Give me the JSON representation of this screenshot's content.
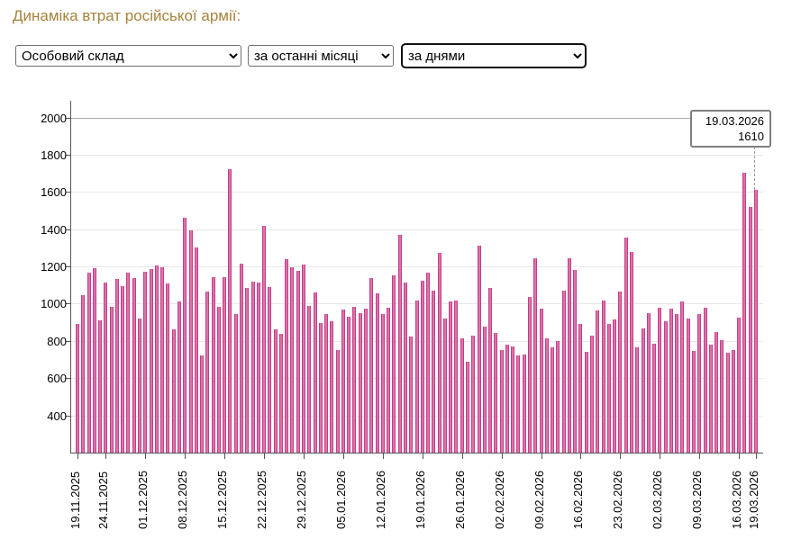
{
  "page": {
    "title": "Динаміка втрат російської армії:"
  },
  "filters": {
    "category": {
      "value": "Особовий склад"
    },
    "period": {
      "value": "за останні місяці"
    },
    "granularity": {
      "value": "за днями"
    }
  },
  "tooltip": {
    "date": "19.03.2026",
    "value": "1610"
  },
  "chart_data": {
    "type": "bar",
    "title": "Динаміка втрат російської армії",
    "ylabel": "",
    "xlabel": "",
    "ylim": [
      200,
      2090
    ],
    "y_ticks": [
      400,
      600,
      800,
      1000,
      1200,
      1400,
      1600,
      1800,
      2000
    ],
    "grid": true,
    "bar_color": "#dc72ac",
    "bar_border_color": "#c33e86",
    "x_ticks": [
      {
        "label": "19.11.2025",
        "day": 0
      },
      {
        "label": "24.11.2025",
        "day": 5
      },
      {
        "label": "01.12.2025",
        "day": 12
      },
      {
        "label": "08.12.2025",
        "day": 19
      },
      {
        "label": "15.12.2025",
        "day": 26
      },
      {
        "label": "22.12.2025",
        "day": 33
      },
      {
        "label": "29.12.2025",
        "day": 40
      },
      {
        "label": "05.01.2026",
        "day": 47
      },
      {
        "label": "12.01.2026",
        "day": 54
      },
      {
        "label": "19.01.2026",
        "day": 61
      },
      {
        "label": "26.01.2026",
        "day": 68
      },
      {
        "label": "02.02.2026",
        "day": 75
      },
      {
        "label": "09.02.2026",
        "day": 82
      },
      {
        "label": "16.02.2026",
        "day": 89
      },
      {
        "label": "23.02.2026",
        "day": 96
      },
      {
        "label": "02.03.2026",
        "day": 103
      },
      {
        "label": "09.03.2026",
        "day": 110
      },
      {
        "label": "16.03.2026",
        "day": 117
      },
      {
        "label": "19.03.2026",
        "day": 120
      }
    ],
    "dates": [
      "19.11.2025",
      "20.11.2025",
      "21.11.2025",
      "22.11.2025",
      "23.11.2025",
      "24.11.2025",
      "25.11.2025",
      "26.11.2025",
      "27.11.2025",
      "28.11.2025",
      "29.11.2025",
      "30.11.2025",
      "01.12.2025",
      "02.12.2025",
      "03.12.2025",
      "04.12.2025",
      "05.12.2025",
      "06.12.2025",
      "07.12.2025",
      "08.12.2025",
      "09.12.2025",
      "10.12.2025",
      "11.12.2025",
      "12.12.2025",
      "13.12.2025",
      "14.12.2025",
      "15.12.2025",
      "16.12.2025",
      "17.12.2025",
      "18.12.2025",
      "19.12.2025",
      "20.12.2025",
      "21.12.2025",
      "22.12.2025",
      "23.12.2025",
      "24.12.2025",
      "25.12.2025",
      "26.12.2025",
      "27.12.2025",
      "28.12.2025",
      "29.12.2025",
      "30.12.2025",
      "31.12.2025",
      "01.01.2026",
      "02.01.2026",
      "03.01.2026",
      "04.01.2026",
      "05.01.2026",
      "06.01.2026",
      "07.01.2026",
      "08.01.2026",
      "09.01.2026",
      "10.01.2026",
      "11.01.2026",
      "12.01.2026",
      "13.01.2026",
      "14.01.2026",
      "15.01.2026",
      "16.01.2026",
      "17.01.2026",
      "18.01.2026",
      "19.01.2026",
      "20.01.2026",
      "21.01.2026",
      "22.01.2026",
      "23.01.2026",
      "24.01.2026",
      "25.01.2026",
      "26.01.2026",
      "27.01.2026",
      "28.01.2026",
      "29.01.2026",
      "30.01.2026",
      "31.01.2026",
      "01.02.2026",
      "02.02.2026",
      "03.02.2026",
      "04.02.2026",
      "05.02.2026",
      "06.02.2026",
      "07.02.2026",
      "08.02.2026",
      "09.02.2026",
      "10.02.2026",
      "11.02.2026",
      "12.02.2026",
      "13.02.2026",
      "14.02.2026",
      "15.02.2026",
      "16.02.2026",
      "17.02.2026",
      "18.02.2026",
      "19.02.2026",
      "20.02.2026",
      "21.02.2026",
      "22.02.2026",
      "23.02.2026",
      "24.02.2026",
      "25.02.2026",
      "26.02.2026",
      "27.02.2026",
      "28.02.2026",
      "01.03.2026",
      "02.03.2026",
      "03.03.2026",
      "04.03.2026",
      "05.03.2026",
      "06.03.2026",
      "07.03.2026",
      "08.03.2026",
      "09.03.2026",
      "10.03.2026",
      "11.03.2026",
      "12.03.2026",
      "13.03.2026",
      "14.03.2026",
      "15.03.2026",
      "16.03.2026",
      "17.03.2026",
      "18.03.2026",
      "19.03.2026"
    ],
    "values": [
      890,
      1045,
      1165,
      1190,
      910,
      1115,
      985,
      1135,
      1095,
      1165,
      1140,
      920,
      1170,
      1185,
      1205,
      1195,
      1110,
      860,
      1010,
      1460,
      1395,
      1300,
      720,
      1065,
      1145,
      985,
      1145,
      1725,
      945,
      1215,
      1085,
      1120,
      1115,
      1420,
      1090,
      860,
      840,
      1240,
      1195,
      1175,
      1210,
      990,
      1060,
      895,
      945,
      905,
      750,
      970,
      930,
      985,
      950,
      975,
      1140,
      1055,
      945,
      980,
      1150,
      1370,
      1115,
      825,
      1015,
      1125,
      1165,
      1070,
      1275,
      920,
      1010,
      1015,
      815,
      690,
      830,
      1310,
      875,
      1085,
      845,
      750,
      780,
      770,
      720,
      725,
      1035,
      1245,
      975,
      815,
      765,
      800,
      1070,
      1245,
      1180,
      890,
      740,
      830,
      965,
      1015,
      890,
      915,
      1065,
      1355,
      1280,
      765,
      865,
      950,
      785,
      980,
      905,
      975,
      945,
      1010,
      920,
      745,
      945,
      980,
      780,
      850,
      805,
      735,
      750,
      925,
      1705,
      1520,
      1610
    ],
    "highlighted_index": 120,
    "legend": "none"
  }
}
